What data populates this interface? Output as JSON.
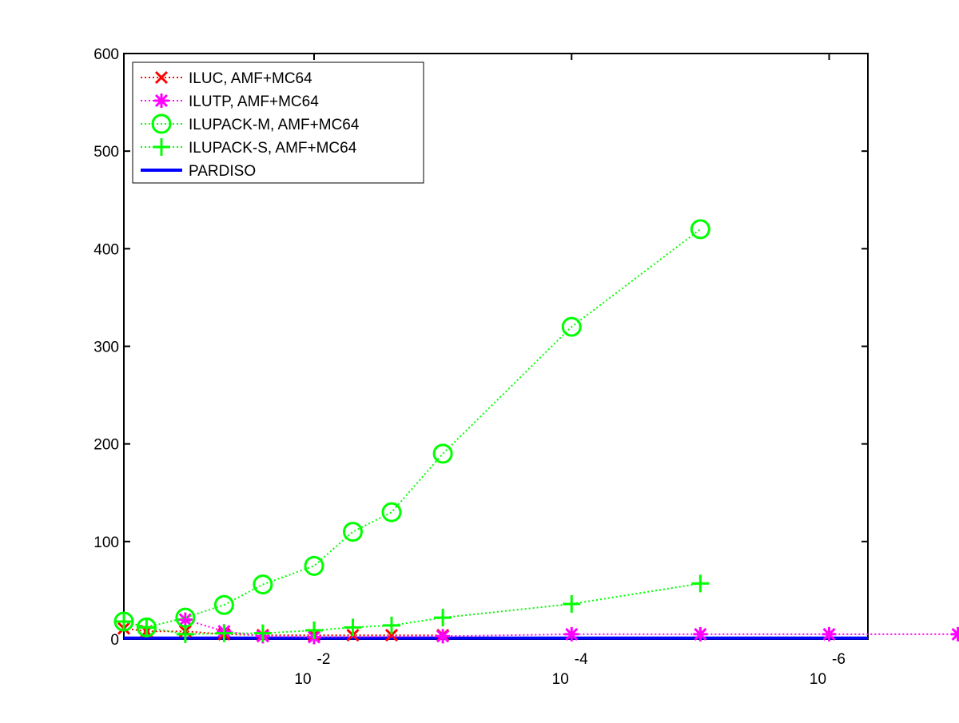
{
  "chart_data": {
    "type": "line",
    "title": "",
    "xlabel": "",
    "ylabel": "",
    "x_scale": "log",
    "x_reversed": true,
    "xlim": [
      0.3,
      5e-07
    ],
    "ylim": [
      0,
      600
    ],
    "y_ticks": [
      0,
      100,
      200,
      300,
      400,
      500,
      600
    ],
    "x_ticks": [
      {
        "value": 0.01,
        "base": "10",
        "exponent": "-2"
      },
      {
        "value": 0.0001,
        "base": "10",
        "exponent": "-4"
      },
      {
        "value": 1e-06,
        "base": "10",
        "exponent": "-6"
      }
    ],
    "grid": false,
    "legend_position": "top-left",
    "series": [
      {
        "name": "ILUC, AMF+MC64",
        "color": "#ff0000",
        "marker": "x",
        "line": "dotted",
        "x": [
          0.3,
          0.2,
          0.1,
          0.05,
          0.025,
          0.01,
          0.005,
          0.0025,
          0.001
        ],
        "y": [
          11,
          8,
          8,
          5,
          4,
          4,
          4,
          4,
          4
        ]
      },
      {
        "name": "ILUTP, AMF+MC64",
        "color": "#ff00ff",
        "marker": "asterisk",
        "line": "dotted",
        "x": [
          0.1,
          0.05,
          0.025,
          0.01,
          0.001,
          0.0001,
          1e-05,
          1e-06,
          1e-07
        ],
        "y": [
          20,
          8,
          3,
          2,
          3,
          5,
          5,
          5,
          5
        ]
      },
      {
        "name": "ILUPACK-M, AMF+MC64",
        "color": "#00ff00",
        "marker": "circle",
        "line": "dotted",
        "x": [
          0.3,
          0.2,
          0.1,
          0.05,
          0.025,
          0.01,
          0.005,
          0.0025,
          0.001,
          0.0001,
          1e-05
        ],
        "y": [
          18,
          12,
          22,
          35,
          56,
          75,
          110,
          130,
          190,
          320,
          420
        ]
      },
      {
        "name": "ILUPACK-S, AMF+MC64",
        "color": "#00ff00",
        "marker": "plus",
        "line": "dotted",
        "x": [
          0.3,
          0.2,
          0.1,
          0.05,
          0.025,
          0.01,
          0.005,
          0.0025,
          0.001,
          0.0001,
          1e-05
        ],
        "y": [
          18,
          12,
          5,
          6,
          6,
          9,
          12,
          14,
          22,
          36,
          57
        ]
      },
      {
        "name": "PARDISO",
        "color": "#0000ff",
        "marker": "none",
        "line": "solid",
        "x": [
          0.3,
          5e-07
        ],
        "y": [
          1,
          1
        ]
      }
    ]
  }
}
